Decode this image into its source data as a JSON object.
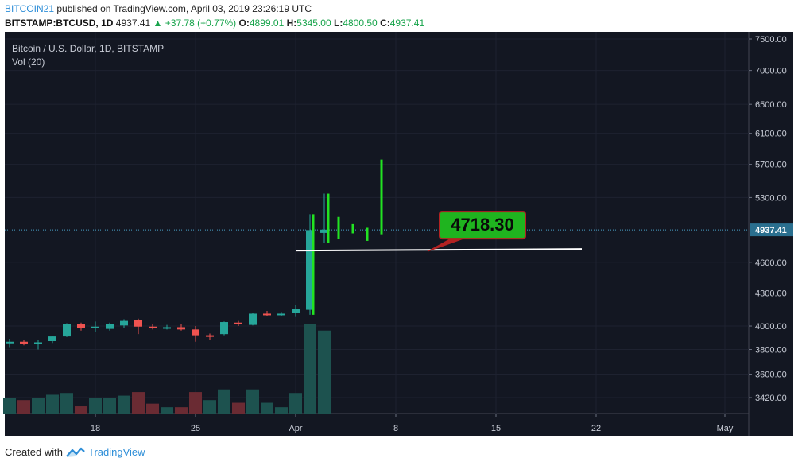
{
  "header": {
    "author": "BITCOIN21",
    "published_text": "published on TradingView.com, April 03, 2019 23:26:19 UTC",
    "symbol": "BITSTAMP:BTCUSD, 1D",
    "last": "4937.41",
    "change": "+37.78 (+0.77%)",
    "o_label": "O:",
    "o_value": "4899.01",
    "h_label": "H:",
    "h_value": "5345.00",
    "l_label": "L:",
    "l_value": "4800.50",
    "c_label": "C:",
    "c_value": "4937.41"
  },
  "footer": {
    "created_with": "Created with",
    "brand": "TradingView"
  },
  "colors": {
    "background": "#131722",
    "grid": "#1e2230",
    "up": "#26a69a",
    "down": "#ef5350",
    "bright_green": "#22e322",
    "vol_up": "#1d524f",
    "vol_down": "#6a2b33",
    "callout_fill": "#1fb41f",
    "callout_border": "#b22222",
    "price_line": "#4aa3c8"
  },
  "chart_data": {
    "type": "candlestick",
    "title": "Bitcoin / U.S. Dollar, 1D, BITSTAMP",
    "subtitle": "Vol (20)",
    "ylim": [
      3250,
      7600
    ],
    "y_ticks": [
      "7500.00",
      "7000.00",
      "6500.00",
      "6100.00",
      "5700.00",
      "5300.00",
      "4937.41",
      "4600.00",
      "4300.00",
      "4000.00",
      "3800.00",
      "3600.00",
      "3420.00"
    ],
    "x_ticks": [
      {
        "label": "18",
        "day": 18
      },
      {
        "label": "25",
        "day": 25
      },
      {
        "label": "Apr",
        "day": 32
      },
      {
        "label": "8",
        "day": 39
      },
      {
        "label": "15",
        "day": 46
      },
      {
        "label": "22",
        "day": 53
      },
      {
        "label": "May",
        "day": 62
      }
    ],
    "last_price": 4937.41,
    "candles": [
      {
        "day": 12,
        "o": 3855,
        "h": 3890,
        "l": 3820,
        "c": 3865
      },
      {
        "day": 13,
        "o": 3865,
        "h": 3880,
        "l": 3835,
        "c": 3850
      },
      {
        "day": 14,
        "o": 3850,
        "h": 3880,
        "l": 3800,
        "c": 3860
      },
      {
        "day": 15,
        "o": 3870,
        "h": 3915,
        "l": 3855,
        "c": 3910
      },
      {
        "day": 16,
        "o": 3910,
        "h": 4025,
        "l": 3905,
        "c": 4015
      },
      {
        "day": 17,
        "o": 4015,
        "h": 4030,
        "l": 3960,
        "c": 3985
      },
      {
        "day": 18,
        "o": 3985,
        "h": 4040,
        "l": 3950,
        "c": 3995
      },
      {
        "day": 19,
        "o": 3975,
        "h": 4030,
        "l": 3960,
        "c": 4020
      },
      {
        "day": 20,
        "o": 4005,
        "h": 4060,
        "l": 3985,
        "c": 4045
      },
      {
        "day": 21,
        "o": 4050,
        "h": 4065,
        "l": 3930,
        "c": 3995
      },
      {
        "day": 22,
        "o": 3995,
        "h": 4020,
        "l": 3970,
        "c": 3985
      },
      {
        "day": 23,
        "o": 3985,
        "h": 4010,
        "l": 3970,
        "c": 3990
      },
      {
        "day": 24,
        "o": 3990,
        "h": 4015,
        "l": 3960,
        "c": 3970
      },
      {
        "day": 25,
        "o": 3970,
        "h": 4000,
        "l": 3865,
        "c": 3920
      },
      {
        "day": 26,
        "o": 3920,
        "h": 3935,
        "l": 3880,
        "c": 3910
      },
      {
        "day": 27,
        "o": 3930,
        "h": 4040,
        "l": 3920,
        "c": 4035
      },
      {
        "day": 28,
        "o": 4030,
        "h": 4045,
        "l": 4000,
        "c": 4015
      },
      {
        "day": 29,
        "o": 4010,
        "h": 4120,
        "l": 4005,
        "c": 4110
      },
      {
        "day": 30,
        "o": 4110,
        "h": 4135,
        "l": 4090,
        "c": 4100
      },
      {
        "day": 31,
        "o": 4100,
        "h": 4125,
        "l": 4085,
        "c": 4110
      },
      {
        "day": 32,
        "o": 4115,
        "h": 4185,
        "l": 4080,
        "c": 4150
      },
      {
        "day": 33,
        "o": 4145,
        "h": 5110,
        "l": 4100,
        "c": 4935
      },
      {
        "day": 34,
        "o": 4905,
        "h": 5345,
        "l": 4800,
        "c": 4940
      }
    ],
    "projection_marks": [
      {
        "day": 34.0,
        "high": 5345,
        "low": 4800
      },
      {
        "day": 35,
        "high": 5080,
        "low": 4840
      },
      {
        "day": 36,
        "high": 5000,
        "low": 4900
      },
      {
        "day": 37,
        "high": 4960,
        "low": 4820
      },
      {
        "day": 38,
        "high": 5760,
        "low": 4890
      }
    ],
    "volume_top": 4015,
    "volumes": [
      {
        "day": 12,
        "v": 0.17,
        "dir": "up"
      },
      {
        "day": 13,
        "v": 0.15,
        "dir": "down"
      },
      {
        "day": 14,
        "v": 0.17,
        "dir": "up"
      },
      {
        "day": 15,
        "v": 0.21,
        "dir": "up"
      },
      {
        "day": 16,
        "v": 0.23,
        "dir": "up"
      },
      {
        "day": 17,
        "v": 0.08,
        "dir": "down"
      },
      {
        "day": 18,
        "v": 0.17,
        "dir": "up"
      },
      {
        "day": 19,
        "v": 0.17,
        "dir": "up"
      },
      {
        "day": 20,
        "v": 0.2,
        "dir": "up"
      },
      {
        "day": 21,
        "v": 0.24,
        "dir": "down"
      },
      {
        "day": 22,
        "v": 0.11,
        "dir": "down"
      },
      {
        "day": 23,
        "v": 0.07,
        "dir": "up"
      },
      {
        "day": 24,
        "v": 0.07,
        "dir": "down"
      },
      {
        "day": 25,
        "v": 0.24,
        "dir": "down"
      },
      {
        "day": 26,
        "v": 0.15,
        "dir": "up"
      },
      {
        "day": 27,
        "v": 0.27,
        "dir": "up"
      },
      {
        "day": 28,
        "v": 0.12,
        "dir": "down"
      },
      {
        "day": 29,
        "v": 0.27,
        "dir": "up"
      },
      {
        "day": 30,
        "v": 0.12,
        "dir": "up"
      },
      {
        "day": 31,
        "v": 0.07,
        "dir": "up"
      },
      {
        "day": 32,
        "v": 0.23,
        "dir": "up"
      },
      {
        "day": 33,
        "v": 1.0,
        "dir": "up"
      },
      {
        "day": 34,
        "v": 0.93,
        "dir": "up"
      }
    ],
    "horizontal_line": {
      "price": 4718.3,
      "day_start": 32,
      "day_end": 52
    },
    "callout": {
      "label": "4718.30",
      "price": 4718.3,
      "day": 45
    }
  }
}
